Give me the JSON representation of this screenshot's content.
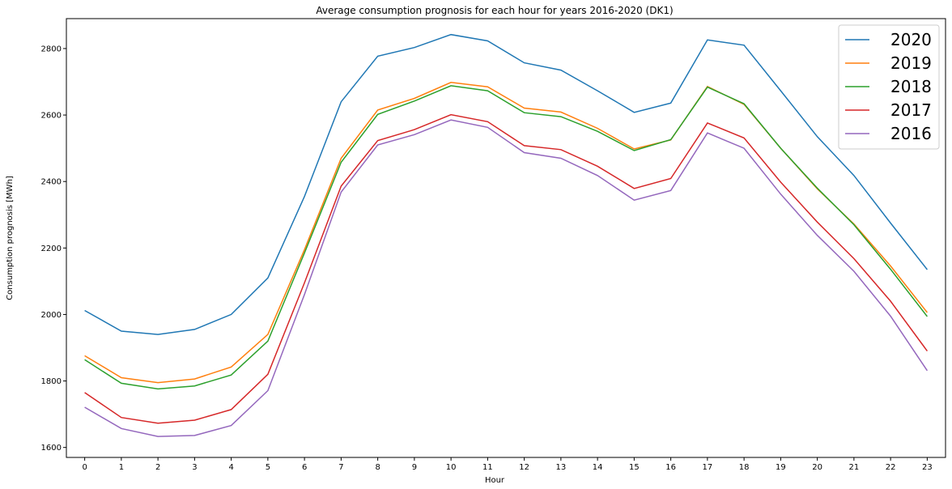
{
  "chart_data": {
    "type": "line",
    "title": "Average consumption prognosis for each hour for years 2016-2020 (DK1)",
    "xlabel": "Hour",
    "ylabel": "Consumption prognosis [MWh]",
    "x": [
      0,
      1,
      2,
      3,
      4,
      5,
      6,
      7,
      8,
      9,
      10,
      11,
      12,
      13,
      14,
      15,
      16,
      17,
      18,
      19,
      20,
      21,
      22,
      23
    ],
    "xlim": [
      -0.5,
      23.5
    ],
    "ylim": [
      1570,
      2890
    ],
    "yticks": [
      1600,
      1800,
      2000,
      2200,
      2400,
      2600,
      2800
    ],
    "grid": false,
    "legend_position": "top-right",
    "series": [
      {
        "name": "2020",
        "color": "#1f77b4",
        "values": [
          2012,
          1950,
          1940,
          1955,
          2000,
          2110,
          2355,
          2640,
          2777,
          2803,
          2842,
          2823,
          2757,
          2735,
          2673,
          2608,
          2636,
          2826,
          2810,
          2673,
          2535,
          2418,
          2275,
          2135
        ]
      },
      {
        "name": "2019",
        "color": "#ff7f0e",
        "values": [
          1876,
          1810,
          1795,
          1806,
          1842,
          1940,
          2195,
          2470,
          2615,
          2650,
          2698,
          2685,
          2621,
          2609,
          2560,
          2498,
          2525,
          2686,
          2632,
          2500,
          2378,
          2272,
          2146,
          2006
        ]
      },
      {
        "name": "2018",
        "color": "#2ca02c",
        "values": [
          1864,
          1793,
          1776,
          1785,
          1818,
          1920,
          2185,
          2458,
          2602,
          2642,
          2688,
          2673,
          2607,
          2595,
          2551,
          2493,
          2526,
          2684,
          2634,
          2500,
          2380,
          2270,
          2136,
          1994
        ]
      },
      {
        "name": "2017",
        "color": "#d62728",
        "values": [
          1765,
          1690,
          1673,
          1682,
          1714,
          1820,
          2095,
          2386,
          2523,
          2556,
          2601,
          2580,
          2508,
          2496,
          2446,
          2379,
          2409,
          2576,
          2531,
          2398,
          2278,
          2168,
          2040,
          1890
        ]
      },
      {
        "name": "2016",
        "color": "#9467bd",
        "values": [
          1721,
          1657,
          1633,
          1636,
          1666,
          1771,
          2060,
          2368,
          2510,
          2541,
          2585,
          2563,
          2487,
          2470,
          2418,
          2344,
          2373,
          2546,
          2500,
          2362,
          2238,
          2130,
          1995,
          1831
        ]
      }
    ]
  }
}
